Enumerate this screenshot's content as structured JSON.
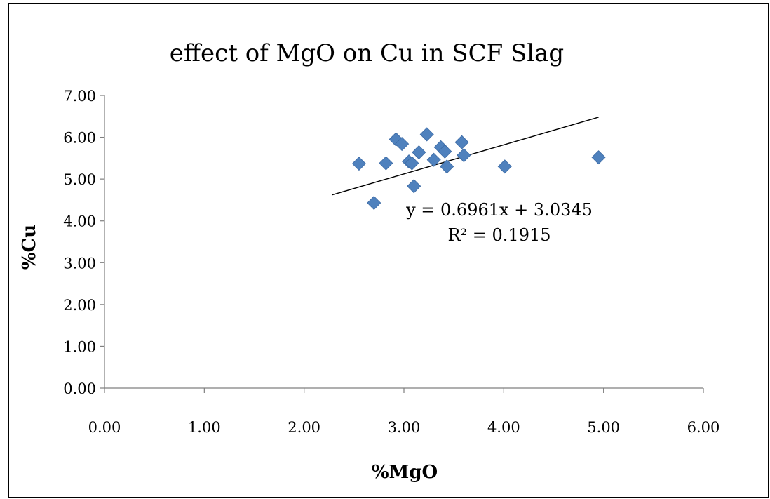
{
  "chart_data": {
    "type": "scatter",
    "title": "effect of MgO on Cu in SCF Slag",
    "xlabel": "%MgO",
    "ylabel": "%Cu",
    "xlim": [
      0,
      6
    ],
    "ylim": [
      0,
      7
    ],
    "x_ticks": [
      "0.00",
      "1.00",
      "2.00",
      "3.00",
      "4.00",
      "5.00",
      "6.00"
    ],
    "y_ticks": [
      "0.00",
      "1.00",
      "2.00",
      "3.00",
      "4.00",
      "5.00",
      "6.00",
      "7.00"
    ],
    "grid": false,
    "marker_color": "#4F81BD",
    "series": [
      {
        "x": [
          2.55,
          2.7,
          2.82,
          2.92,
          2.98,
          3.05,
          3.08,
          3.1,
          3.15,
          3.23,
          3.3,
          3.37,
          3.41,
          3.43,
          3.58,
          3.6,
          4.01,
          4.95
        ],
        "y": [
          5.37,
          4.43,
          5.38,
          5.95,
          5.84,
          5.42,
          5.38,
          4.83,
          5.64,
          6.07,
          5.46,
          5.76,
          5.66,
          5.3,
          5.88,
          5.57,
          5.3,
          5.52
        ]
      }
    ],
    "trendline": {
      "slope": 0.6961,
      "intercept": 3.0345,
      "x_range": [
        2.28,
        4.95
      ],
      "equation": "y = 0.6961x + 3.0345",
      "r2": "R² = 0.1915"
    }
  }
}
